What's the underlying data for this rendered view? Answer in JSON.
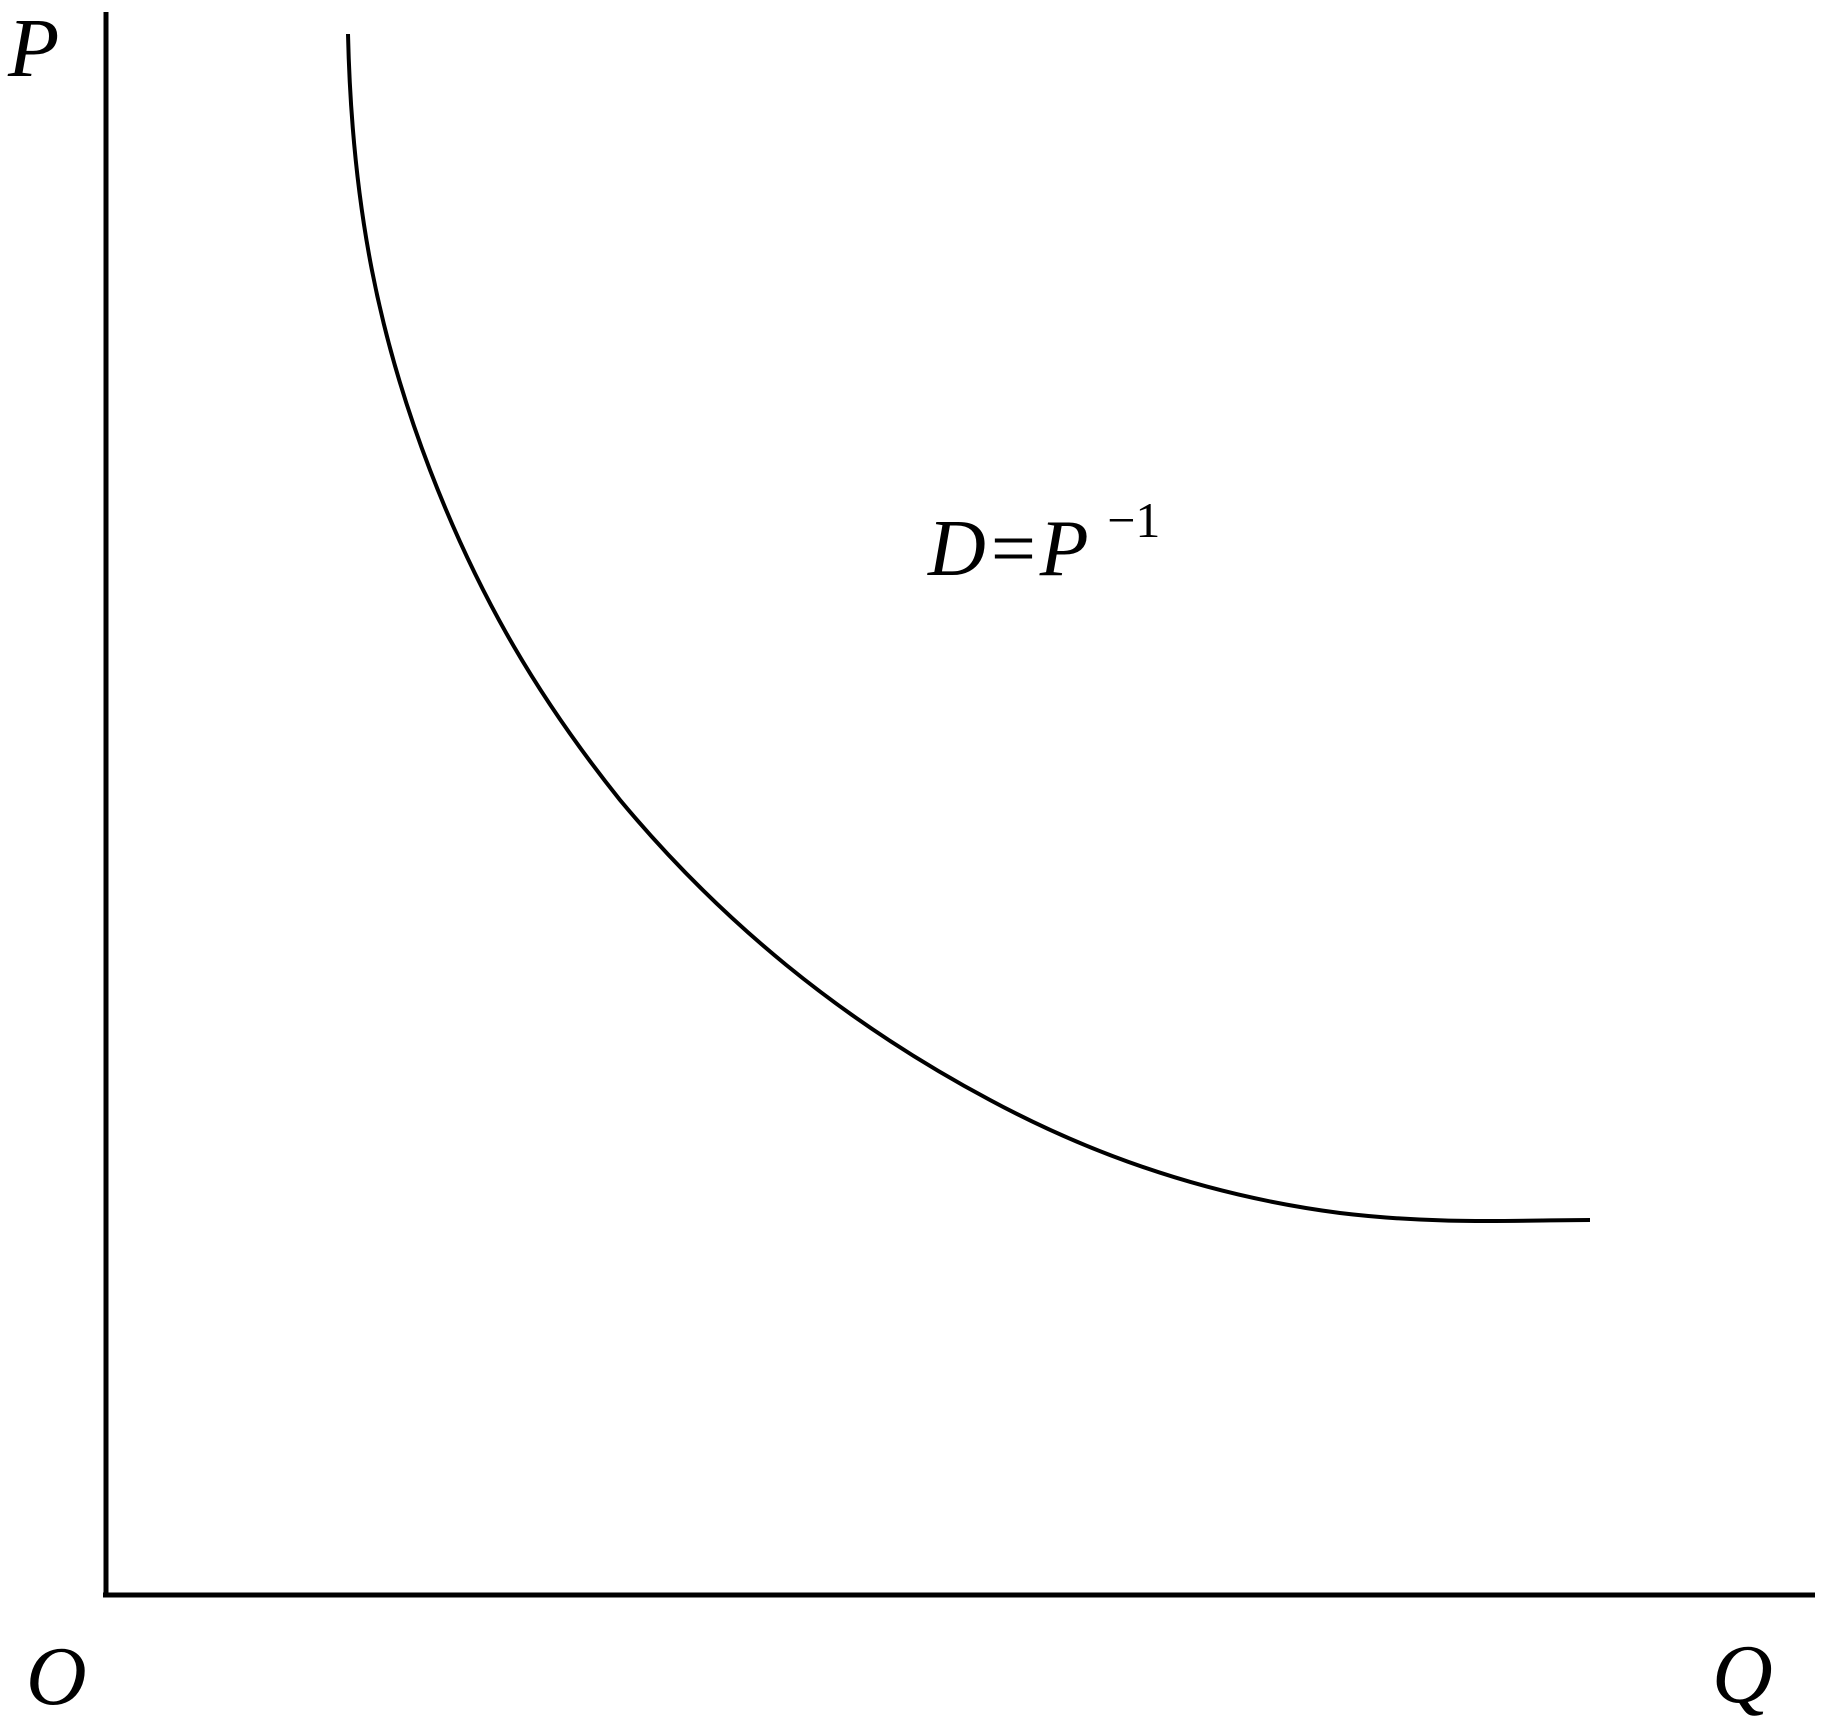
{
  "diagram": {
    "y_axis_label": "P",
    "x_axis_label": "Q",
    "origin_label": "O",
    "curve_label": {
      "base": "D=P",
      "exponent": "−1"
    }
  },
  "colors": {
    "stroke": "#000000",
    "background": "#ffffff"
  }
}
